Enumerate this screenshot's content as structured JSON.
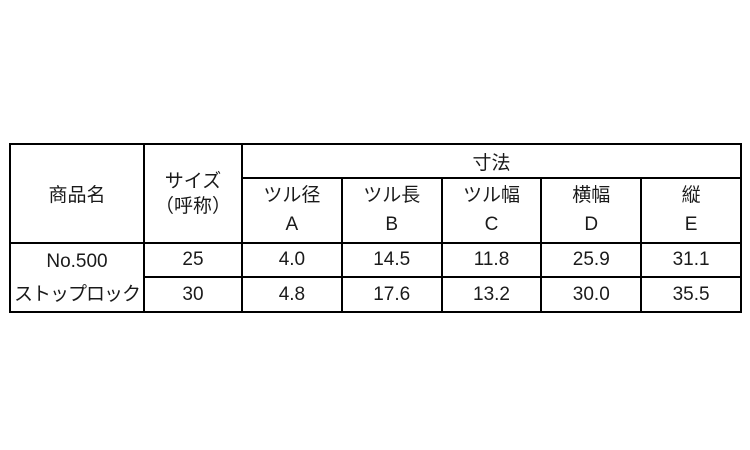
{
  "table": {
    "headers": {
      "product": "商品名",
      "size_line1": "サイズ",
      "size_line2": "（呼称）",
      "dimensions_group": "寸法",
      "dim_cols": [
        {
          "label": "ツル径",
          "letter": "A"
        },
        {
          "label": "ツル長",
          "letter": "B"
        },
        {
          "label": "ツル幅",
          "letter": "C"
        },
        {
          "label": "横幅",
          "letter": "D"
        },
        {
          "label": "縦",
          "letter": "E"
        }
      ]
    },
    "product": {
      "line1": "No.500",
      "line2": "ストップロック"
    },
    "rows": [
      {
        "size": "25",
        "values": [
          "4.0",
          "14.5",
          "11.8",
          "25.9",
          "31.1"
        ]
      },
      {
        "size": "30",
        "values": [
          "4.8",
          "17.6",
          "13.2",
          "30.0",
          "35.5"
        ]
      }
    ]
  },
  "colors": {
    "background": "#ffffff",
    "border": "#000000",
    "text": "#1a1a1a"
  }
}
